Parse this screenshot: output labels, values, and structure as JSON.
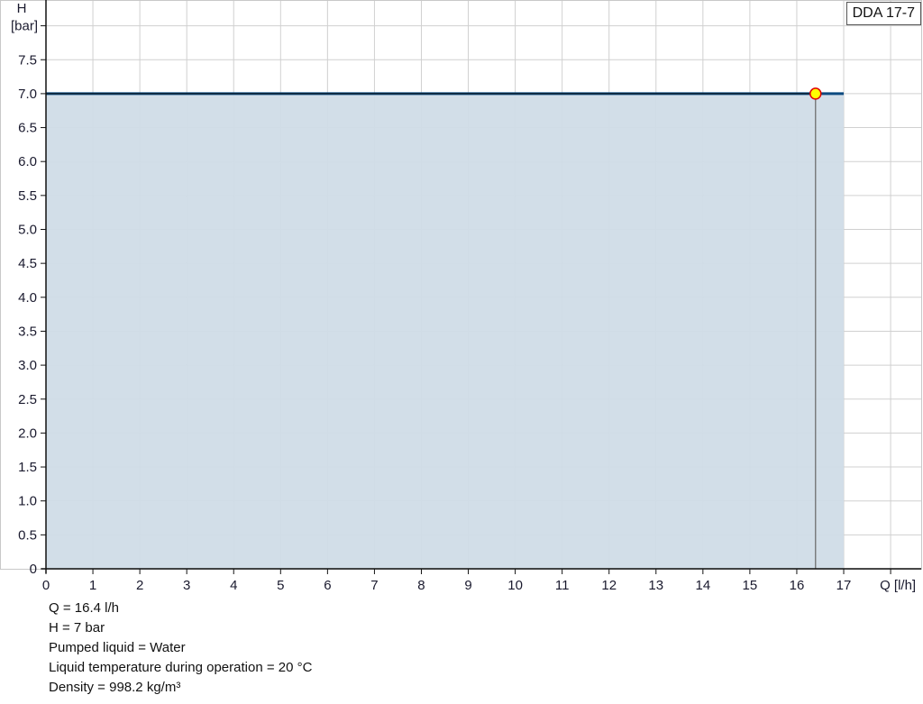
{
  "chart_data": {
    "type": "area",
    "legend": {
      "label": "DDA 17-7",
      "placement": "top-right"
    },
    "xlabel": "Q [l/h]",
    "ylabel": "H",
    "yunit": "[bar]",
    "xlim": [
      0,
      18
    ],
    "ylim": [
      0,
      8
    ],
    "grid": true,
    "x_ticks": [
      "0",
      "1",
      "2",
      "3",
      "4",
      "5",
      "6",
      "7",
      "8",
      "9",
      "10",
      "11",
      "12",
      "13",
      "14",
      "15",
      "16",
      "17"
    ],
    "y_ticks": [
      "0",
      "0.5",
      "1.0",
      "1.5",
      "2.0",
      "2.5",
      "3.0",
      "3.5",
      "4.0",
      "4.5",
      "5.0",
      "5.5",
      "6.0",
      "6.5",
      "7.0",
      "7.5"
    ],
    "series": [
      {
        "x": [
          0,
          17
        ],
        "y": [
          7.0,
          7.0
        ],
        "color": "#0b4a80",
        "fill": "#d0dce7"
      }
    ],
    "operating_point": {
      "x": 16.4,
      "y": 7.0,
      "color": "#ffff00",
      "stroke": "#e00000"
    }
  },
  "info": [
    "Q = 16.4 l/h",
    "H = 7 bar",
    "Pumped liquid = Water",
    "Liquid temperature during operation = 20 °C",
    "Density = 998.2 kg/m³"
  ]
}
